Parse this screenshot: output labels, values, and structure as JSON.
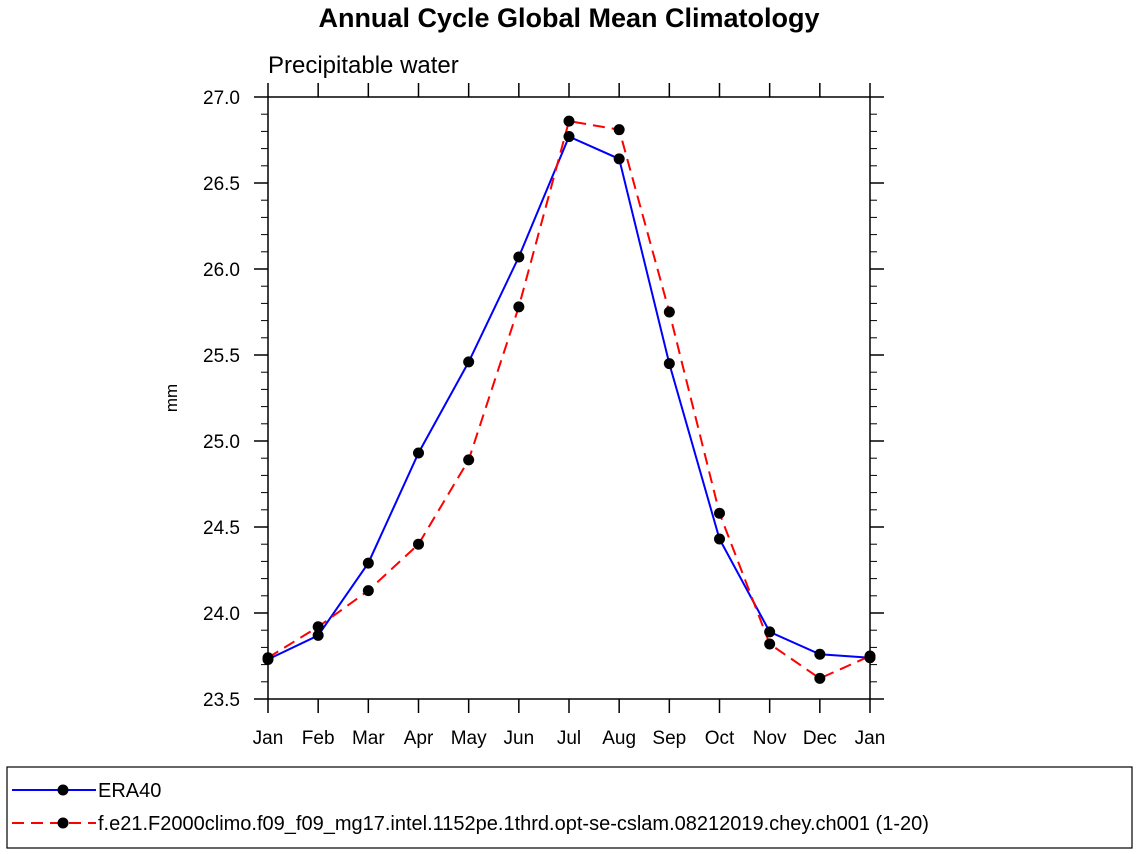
{
  "chart_data": {
    "type": "line",
    "title": "Annual Cycle Global Mean Climatology",
    "subtitle": "Precipitable water",
    "xlabel": "",
    "ylabel": "mm",
    "categories": [
      "Jan",
      "Feb",
      "Mar",
      "Apr",
      "May",
      "Jun",
      "Jul",
      "Aug",
      "Sep",
      "Oct",
      "Nov",
      "Dec",
      "Jan"
    ],
    "ylim": [
      23.5,
      27.0
    ],
    "yticks": [
      "23.5",
      "24.0",
      "24.5",
      "25.0",
      "25.5",
      "26.0",
      "26.5",
      "27.0"
    ],
    "grid": false,
    "legend_position": "bottom",
    "series": [
      {
        "name": "ERA40",
        "color": "#0000ff",
        "dash": "solid",
        "marker": "filled-circle",
        "values": [
          23.73,
          23.87,
          24.29,
          24.93,
          25.46,
          26.07,
          26.77,
          26.64,
          25.45,
          24.43,
          23.89,
          23.76,
          23.74
        ]
      },
      {
        "name": "f.e21.F2000climo.f09_f09_mg17.intel.1152pe.1thrd.opt-se-cslam.08212019.chey.ch001 (1-20)",
        "color": "#ff0000",
        "dash": "dashed",
        "marker": "filled-circle",
        "values": [
          23.74,
          23.92,
          24.13,
          24.4,
          24.89,
          25.78,
          26.86,
          26.81,
          25.75,
          24.58,
          23.82,
          23.62,
          23.75
        ]
      }
    ]
  }
}
